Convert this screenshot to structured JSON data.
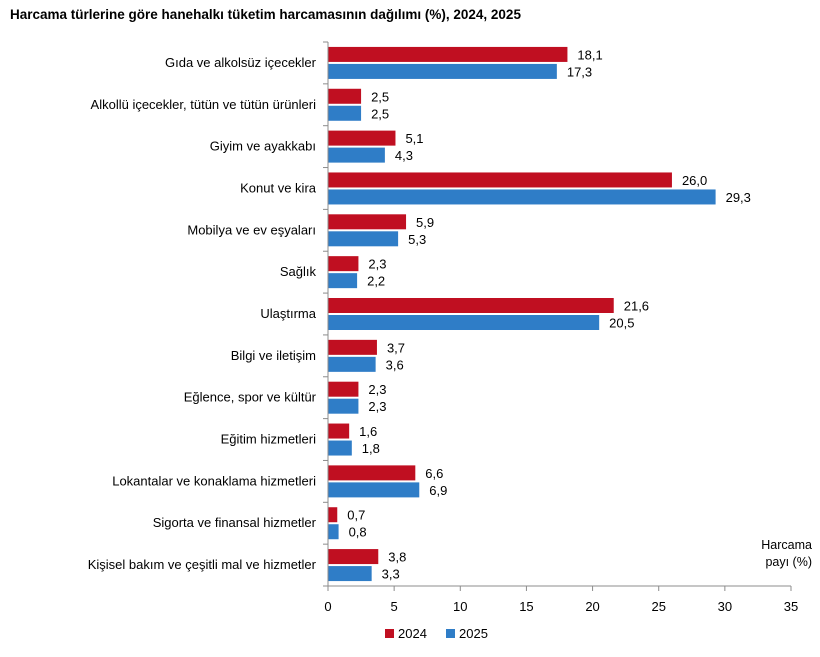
{
  "title": "Harcama türlerine göre hanehalkı tüketim harcamasının dağılımı (%), 2024, 2025",
  "colors": {
    "series_2024": "#C00F21",
    "series_2025": "#2F7DC7",
    "axis": "#8C8C8C",
    "text": "#000000"
  },
  "chart_data": {
    "type": "bar",
    "orientation": "horizontal",
    "categories": [
      "Gıda ve alkolsüz içecekler",
      "Alkollü içecekler, tütün ve tütün ürünleri",
      "Giyim ve ayakkabı",
      "Konut ve kira",
      "Mobilya ve ev eşyaları",
      "Sağlık",
      "Ulaştırma",
      "Bilgi ve iletişim",
      "Eğlence, spor ve kültür",
      "Eğitim hizmetleri",
      "Lokantalar ve konaklama hizmetleri",
      "Sigorta ve finansal hizmetler",
      "Kişisel bakım ve çeşitli mal ve hizmetler"
    ],
    "series": [
      {
        "name": "2024",
        "values": [
          18.1,
          2.5,
          5.1,
          26.0,
          5.9,
          2.3,
          21.6,
          3.7,
          2.3,
          1.6,
          6.6,
          0.7,
          3.8
        ],
        "labels": [
          "18,1",
          "2,5",
          "5,1",
          "26,0",
          "5,9",
          "2,3",
          "21,6",
          "3,7",
          "2,3",
          "1,6",
          "6,6",
          "0,7",
          "3,8"
        ]
      },
      {
        "name": "2025",
        "values": [
          17.3,
          2.5,
          4.3,
          29.3,
          5.3,
          2.2,
          20.5,
          3.6,
          2.3,
          1.8,
          6.9,
          0.8,
          3.3
        ],
        "labels": [
          "17,3",
          "2,5",
          "4,3",
          "29,3",
          "5,3",
          "2,2",
          "20,5",
          "3,6",
          "2,3",
          "1,8",
          "6,9",
          "0,8",
          "3,3"
        ]
      }
    ],
    "xlabel": [
      "Harcama",
      "payı  (%)"
    ],
    "xlim": [
      0,
      35
    ],
    "xticks": [
      0,
      5,
      10,
      15,
      20,
      25,
      30,
      35
    ],
    "grid": false,
    "legend_position": "bottom"
  }
}
